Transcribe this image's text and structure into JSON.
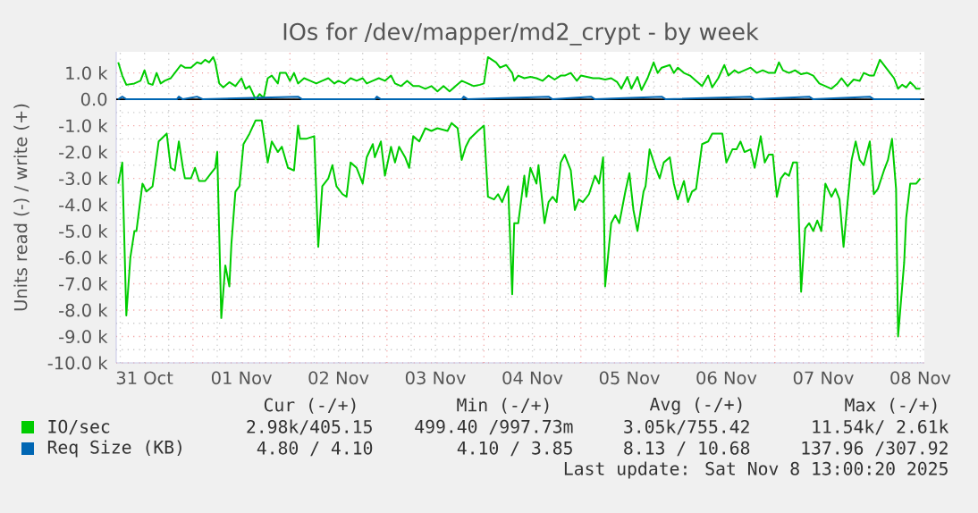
{
  "chart_data": {
    "type": "line",
    "title": "IOs for /dev/mapper/md2_crypt - by week",
    "ylabel": "Units read (-) / write (+)",
    "xlim": [
      "2025-10-31T05:00",
      "2025-11-08T13:00"
    ],
    "ylim": [
      -10000,
      1800
    ],
    "xticks": [
      {
        "value": "2025-10-31T12:00",
        "label": "31 Oct"
      },
      {
        "value": "2025-11-01T12:00",
        "label": "01 Nov"
      },
      {
        "value": "2025-11-02T12:00",
        "label": "02 Nov"
      },
      {
        "value": "2025-11-03T12:00",
        "label": "03 Nov"
      },
      {
        "value": "2025-11-04T12:00",
        "label": "04 Nov"
      },
      {
        "value": "2025-11-05T12:00",
        "label": "05 Nov"
      },
      {
        "value": "2025-11-06T12:00",
        "label": "06 Nov"
      },
      {
        "value": "2025-11-07T12:00",
        "label": "07 Nov"
      },
      {
        "value": "2025-11-08T12:00",
        "label": "08 Nov"
      },
      {
        "value": "2025-11-01T00:00",
        "label": null
      },
      {
        "value": "2025-11-02T00:00",
        "label": null
      },
      {
        "value": "2025-11-03T00:00",
        "label": null
      },
      {
        "value": "2025-11-04T00:00",
        "label": null
      },
      {
        "value": "2025-11-05T00:00",
        "label": null
      },
      {
        "value": "2025-11-06T00:00",
        "label": null
      },
      {
        "value": "2025-11-07T00:00",
        "label": null
      },
      {
        "value": "2025-11-08T00:00",
        "label": null
      }
    ],
    "yticks": [
      {
        "value": 1000,
        "label": "1.0 k"
      },
      {
        "value": 0,
        "label": "0.0"
      },
      {
        "value": -1000,
        "label": "-1.0 k"
      },
      {
        "value": -2000,
        "label": "-2.0 k"
      },
      {
        "value": -3000,
        "label": "-3.0 k"
      },
      {
        "value": -4000,
        "label": "-4.0 k"
      },
      {
        "value": -5000,
        "label": "-5.0 k"
      },
      {
        "value": -6000,
        "label": "-6.0 k"
      },
      {
        "value": -7000,
        "label": "-7.0 k"
      },
      {
        "value": -8000,
        "label": "-8.0 k"
      },
      {
        "value": -9000,
        "label": "-9.0 k"
      },
      {
        "value": -10000,
        "label": "-10.0 k"
      }
    ],
    "grid": true,
    "legend": "bottom",
    "ref_lines": [
      {
        "axis": "y",
        "value": 0,
        "color": "#000000"
      }
    ],
    "series": [
      {
        "name": "IO/sec",
        "color": "#00cc00",
        "x": [
          "2025-10-31T05:30",
          "2025-10-31T06:30",
          "2025-10-31T07:30",
          "2025-10-31T09:30",
          "2025-10-31T11:00",
          "2025-10-31T12:00",
          "2025-10-31T13:00",
          "2025-10-31T14:00",
          "2025-10-31T15:00",
          "2025-10-31T16:00",
          "2025-10-31T17:00",
          "2025-10-31T18:30",
          "2025-10-31T19:30",
          "2025-10-31T21:00",
          "2025-10-31T22:00",
          "2025-10-31T23:30",
          "2025-11-01T01:00",
          "2025-11-01T02:00",
          "2025-11-01T03:00",
          "2025-11-01T04:00",
          "2025-11-01T05:00",
          "2025-11-01T05:30",
          "2025-11-01T06:30",
          "2025-11-01T07:30",
          "2025-11-01T09:00",
          "2025-11-01T10:30",
          "2025-11-01T12:00",
          "2025-11-01T13:00",
          "2025-11-01T14:00",
          "2025-11-01T15:30",
          "2025-11-01T16:30",
          "2025-11-01T17:30",
          "2025-11-01T18:30",
          "2025-11-01T19:30",
          "2025-11-01T21:00",
          "2025-11-01T21:30",
          "2025-11-01T23:00",
          "2025-11-02T00:00",
          "2025-11-02T01:00",
          "2025-11-02T02:00",
          "2025-11-02T03:30",
          "2025-11-02T05:00",
          "2025-11-02T06:30",
          "2025-11-02T08:00",
          "2025-11-02T09:30",
          "2025-11-02T11:00",
          "2025-11-02T12:00",
          "2025-11-02T13:30",
          "2025-11-02T15:00",
          "2025-11-02T16:30",
          "2025-11-02T18:00",
          "2025-11-02T19:00",
          "2025-11-02T20:30",
          "2025-11-02T22:00",
          "2025-11-02T23:30",
          "2025-11-03T01:00",
          "2025-11-03T02:00",
          "2025-11-03T03:30",
          "2025-11-03T05:00",
          "2025-11-03T06:30",
          "2025-11-03T08:00",
          "2025-11-03T09:30",
          "2025-11-03T11:00",
          "2025-11-03T12:30",
          "2025-11-03T14:00",
          "2025-11-03T15:30",
          "2025-11-03T17:00",
          "2025-11-03T18:30",
          "2025-11-03T20:00",
          "2025-11-03T21:30",
          "2025-11-03T23:00",
          "2025-11-04T00:00",
          "2025-11-04T01:00",
          "2025-11-04T02:00",
          "2025-11-04T03:00",
          "2025-11-04T04:00",
          "2025-11-04T05:30",
          "2025-11-04T07:00",
          "2025-11-04T07:30",
          "2025-11-04T08:30",
          "2025-11-04T10:00",
          "2025-11-04T11:30",
          "2025-11-04T13:00",
          "2025-11-04T14:30",
          "2025-11-04T16:00",
          "2025-11-04T17:30",
          "2025-11-04T19:00",
          "2025-11-04T20:00",
          "2025-11-04T21:30",
          "2025-11-04T23:00",
          "2025-11-05T00:00",
          "2025-11-05T01:30",
          "2025-11-05T03:00",
          "2025-11-05T04:30",
          "2025-11-05T06:00",
          "2025-11-05T07:30",
          "2025-11-05T09:00",
          "2025-11-05T10:00",
          "2025-11-05T11:30",
          "2025-11-05T12:30",
          "2025-11-05T14:00",
          "2025-11-05T15:00",
          "2025-11-05T16:30",
          "2025-11-05T18:00",
          "2025-11-05T19:00",
          "2025-11-05T20:00",
          "2025-11-05T22:00",
          "2025-11-05T23:00",
          "2025-11-06T00:00",
          "2025-11-06T01:30",
          "2025-11-06T03:00",
          "2025-11-06T04:30",
          "2025-11-06T06:00",
          "2025-11-06T07:30",
          "2025-11-06T08:30",
          "2025-11-06T10:00",
          "2025-11-06T11:30",
          "2025-11-06T12:30",
          "2025-11-06T14:00",
          "2025-11-06T15:00",
          "2025-11-06T16:30",
          "2025-11-06T18:00",
          "2025-11-06T19:30",
          "2025-11-06T21:00",
          "2025-11-06T22:30",
          "2025-11-07T00:00",
          "2025-11-07T01:00",
          "2025-11-07T02:00",
          "2025-11-07T03:30",
          "2025-11-07T05:00",
          "2025-11-07T06:30",
          "2025-11-07T08:00",
          "2025-11-07T09:30",
          "2025-11-07T11:00",
          "2025-11-07T12:30",
          "2025-11-07T14:00",
          "2025-11-07T15:30",
          "2025-11-07T16:30",
          "2025-11-07T18:00",
          "2025-11-07T19:30",
          "2025-11-07T21:00",
          "2025-11-07T22:00",
          "2025-11-07T23:30",
          "2025-11-08T00:30",
          "2025-11-08T02:00",
          "2025-11-08T03:00",
          "2025-11-08T04:30",
          "2025-11-08T05:30",
          "2025-11-08T06:30",
          "2025-11-08T07:30",
          "2025-11-08T08:30",
          "2025-11-08T09:30",
          "2025-11-08T10:30",
          "2025-11-08T11:00",
          "2025-11-08T12:00"
        ],
        "values": [
          1400,
          900,
          550,
          600,
          700,
          1100,
          600,
          550,
          1000,
          600,
          700,
          800,
          1000,
          1300,
          1200,
          1200,
          1400,
          1350,
          1500,
          1400,
          1600,
          1400,
          600,
          450,
          650,
          500,
          800,
          400,
          500,
          0,
          200,
          50,
          800,
          900,
          600,
          1000,
          1000,
          700,
          1000,
          600,
          800,
          700,
          600,
          700,
          800,
          600,
          700,
          600,
          800,
          700,
          800,
          600,
          700,
          800,
          700,
          900,
          600,
          500,
          700,
          500,
          500,
          400,
          500,
          300,
          500,
          300,
          500,
          700,
          600,
          500,
          550,
          600,
          1600,
          1500,
          1400,
          1200,
          1300,
          1000,
          700,
          900,
          800,
          850,
          800,
          700,
          900,
          750,
          900,
          900,
          1000,
          700,
          900,
          850,
          800,
          800,
          750,
          800,
          650,
          400,
          850,
          400,
          850,
          350,
          800,
          1400,
          1000,
          1200,
          1300,
          1000,
          1200,
          1000,
          900,
          700,
          500,
          900,
          450,
          800,
          1300,
          900,
          1100,
          1000,
          1100,
          1200,
          1000,
          1100,
          1000,
          1000,
          1400,
          1100,
          1000,
          1100,
          950,
          1000,
          900,
          600,
          500,
          400,
          600,
          800,
          500,
          750,
          700,
          1000,
          900,
          900,
          1500,
          1300,
          1000,
          800,
          400,
          550,
          450,
          650,
          500,
          400,
          400
        ]
      },
      {
        "color": "#00cc00",
        "x": [
          "2025-10-31T05:30",
          "2025-10-31T06:30",
          "2025-10-31T07:30",
          "2025-10-31T08:30",
          "2025-10-31T09:30",
          "2025-10-31T10:00",
          "2025-10-31T11:30",
          "2025-10-31T12:30",
          "2025-10-31T14:00",
          "2025-10-31T15:30",
          "2025-10-31T17:30",
          "2025-10-31T18:30",
          "2025-10-31T19:30",
          "2025-10-31T20:30",
          "2025-10-31T21:30",
          "2025-10-31T22:00",
          "2025-10-31T23:30",
          "2025-11-01T00:30",
          "2025-11-01T01:30",
          "2025-11-01T03:00",
          "2025-11-01T04:30",
          "2025-11-01T05:30",
          "2025-11-01T06:00",
          "2025-11-01T07:00",
          "2025-11-01T08:00",
          "2025-11-01T09:00",
          "2025-11-01T09:30",
          "2025-11-01T10:30",
          "2025-11-01T11:30",
          "2025-11-01T12:30",
          "2025-11-01T14:00",
          "2025-11-01T15:30",
          "2025-11-01T17:00",
          "2025-11-01T18:30",
          "2025-11-01T19:30",
          "2025-11-01T21:00",
          "2025-11-01T22:00",
          "2025-11-01T23:30",
          "2025-11-02T01:00",
          "2025-11-02T02:00",
          "2025-11-02T02:30",
          "2025-11-02T04:00",
          "2025-11-02T06:00",
          "2025-11-02T07:00",
          "2025-11-02T08:00",
          "2025-11-02T09:30",
          "2025-11-02T10:30",
          "2025-11-02T11:30",
          "2025-11-02T13:00",
          "2025-11-02T14:00",
          "2025-11-02T15:00",
          "2025-11-02T16:30",
          "2025-11-02T18:00",
          "2025-11-02T19:00",
          "2025-11-02T20:30",
          "2025-11-02T21:00",
          "2025-11-02T22:30",
          "2025-11-02T23:30",
          "2025-11-03T01:00",
          "2025-11-03T02:00",
          "2025-11-03T03:00",
          "2025-11-03T04:30",
          "2025-11-03T05:30",
          "2025-11-03T06:30",
          "2025-11-03T08:00",
          "2025-11-03T09:30",
          "2025-11-03T11:00",
          "2025-11-03T12:30",
          "2025-11-03T15:00",
          "2025-11-03T16:00",
          "2025-11-03T17:30",
          "2025-11-03T18:30",
          "2025-11-03T19:30",
          "2025-11-03T20:30",
          "2025-11-03T22:30",
          "2025-11-04T00:00",
          "2025-11-04T01:00",
          "2025-11-04T02:30",
          "2025-11-04T03:30",
          "2025-11-04T04:30",
          "2025-11-04T06:00",
          "2025-11-04T07:00",
          "2025-11-04T07:30",
          "2025-11-04T08:30",
          "2025-11-04T10:00",
          "2025-11-04T10:30",
          "2025-11-04T11:30",
          "2025-11-04T13:00",
          "2025-11-04T13:30",
          "2025-11-04T15:00",
          "2025-11-04T16:00",
          "2025-11-04T17:00",
          "2025-11-04T18:00",
          "2025-11-04T19:00",
          "2025-11-04T20:00",
          "2025-11-04T21:30",
          "2025-11-04T22:30",
          "2025-11-04T23:30",
          "2025-11-05T00:30",
          "2025-11-05T02:00",
          "2025-11-05T03:30",
          "2025-11-05T04:30",
          "2025-11-05T05:30",
          "2025-11-05T06:00",
          "2025-11-05T07:30",
          "2025-11-05T08:30",
          "2025-11-05T09:30",
          "2025-11-05T11:00",
          "2025-11-05T12:00",
          "2025-11-05T13:00",
          "2025-11-05T14:00",
          "2025-11-05T15:30",
          "2025-11-05T16:00",
          "2025-11-05T17:00",
          "2025-11-05T18:30",
          "2025-11-05T19:30",
          "2025-11-05T20:30",
          "2025-11-05T22:00",
          "2025-11-05T23:00",
          "2025-11-06T00:00",
          "2025-11-06T01:30",
          "2025-11-06T02:30",
          "2025-11-06T03:30",
          "2025-11-06T04:30",
          "2025-11-06T06:00",
          "2025-11-06T07:30",
          "2025-11-06T08:30",
          "2025-11-06T10:00",
          "2025-11-06T11:00",
          "2025-11-06T12:00",
          "2025-11-06T13:30",
          "2025-11-06T14:30",
          "2025-11-06T15:30",
          "2025-11-06T16:30",
          "2025-11-06T18:00",
          "2025-11-06T19:00",
          "2025-11-06T20:30",
          "2025-11-06T21:30",
          "2025-11-06T22:30",
          "2025-11-06T23:30",
          "2025-11-07T00:30",
          "2025-11-07T01:30",
          "2025-11-07T02:30",
          "2025-11-07T03:30",
          "2025-11-07T04:30",
          "2025-11-07T05:30",
          "2025-11-07T06:30",
          "2025-11-07T07:30",
          "2025-11-07T08:30",
          "2025-11-07T09:30",
          "2025-11-07T10:30",
          "2025-11-07T11:30",
          "2025-11-07T12:30",
          "2025-11-07T14:00",
          "2025-11-07T15:00",
          "2025-11-07T16:00",
          "2025-11-07T17:00",
          "2025-11-07T18:00",
          "2025-11-07T19:00",
          "2025-11-07T20:00",
          "2025-11-07T21:00",
          "2025-11-07T22:00",
          "2025-11-07T23:30",
          "2025-11-08T00:30",
          "2025-11-08T01:30",
          "2025-11-08T03:00",
          "2025-11-08T04:00",
          "2025-11-08T05:00",
          "2025-11-08T06:00",
          "2025-11-08T06:30",
          "2025-11-08T08:00",
          "2025-11-08T08:30",
          "2025-11-08T09:30",
          "2025-11-08T11:00",
          "2025-11-08T12:00"
        ],
        "values": [
          -3200,
          -2400,
          -8200,
          -6000,
          -5000,
          -5000,
          -3200,
          -3500,
          -3300,
          -1600,
          -1300,
          -2600,
          -2700,
          -1600,
          -2600,
          -3000,
          -3000,
          -2600,
          -3100,
          -3100,
          -2800,
          -2600,
          -2000,
          -8300,
          -6300,
          -7100,
          -5500,
          -3500,
          -3300,
          -1700,
          -1300,
          -800,
          -800,
          -2400,
          -1600,
          -2000,
          -1800,
          -2600,
          -2700,
          -1000,
          -1500,
          -1500,
          -1400,
          -5600,
          -3300,
          -3000,
          -2500,
          -3300,
          -3600,
          -3700,
          -2400,
          -2600,
          -3200,
          -2200,
          -1700,
          -2200,
          -1600,
          -2900,
          -1800,
          -2400,
          -1800,
          -2200,
          -2600,
          -1400,
          -1600,
          -1100,
          -1200,
          -1100,
          -1200,
          -900,
          -1100,
          -2300,
          -1800,
          -1500,
          -1200,
          -1000,
          -3700,
          -3800,
          -3600,
          -3900,
          -3300,
          -7400,
          -4700,
          -4700,
          -2900,
          -3700,
          -2600,
          -3200,
          -2500,
          -4700,
          -3900,
          -3700,
          -3900,
          -2400,
          -2100,
          -2700,
          -4200,
          -3800,
          -3900,
          -3600,
          -2900,
          -3200,
          -2200,
          -7100,
          -4700,
          -4400,
          -4700,
          -3500,
          -2800,
          -4200,
          -5000,
          -3500,
          -3300,
          -1900,
          -2600,
          -3000,
          -2400,
          -2200,
          -3200,
          -3800,
          -3100,
          -3900,
          -3500,
          -3400,
          -1700,
          -1600,
          -1300,
          -1300,
          -1300,
          -2400,
          -1900,
          -1900,
          -1600,
          -2000,
          -1900,
          -2600,
          -1400,
          -2400,
          -2100,
          -2100,
          -3700,
          -3000,
          -2800,
          -2900,
          -2400,
          -2400,
          -7300,
          -4900,
          -4700,
          -5000,
          -4600,
          -5000,
          -3200,
          -3700,
          -3400,
          -3800,
          -5600,
          -3900,
          -2300,
          -1600,
          -2300,
          -2500,
          -1600,
          -3600,
          -3400,
          -2700,
          -2300,
          -1500,
          -3400,
          -9000,
          -6200,
          -4500,
          -3200,
          -3200,
          -3000
        ]
      },
      {
        "name": "Req Size (KB)",
        "color": "#0066b3",
        "x": [
          "2025-10-31T05:30",
          "2025-10-31T06:30",
          "2025-10-31T07:30",
          "2025-10-31T20:00",
          "2025-10-31T20:30",
          "2025-10-31T21:30",
          "2025-11-01T01:00",
          "2025-11-01T02:30",
          "2025-11-02T02:00",
          "2025-11-02T03:00",
          "2025-11-02T21:00",
          "2025-11-02T21:30",
          "2025-11-02T22:30",
          "2025-11-03T18:30",
          "2025-11-03T19:00",
          "2025-11-03T20:00",
          "2025-11-04T16:00",
          "2025-11-04T17:00",
          "2025-11-05T02:30",
          "2025-11-05T03:30",
          "2025-11-05T20:00",
          "2025-11-05T21:00",
          "2025-11-06T18:00",
          "2025-11-06T19:00",
          "2025-11-07T08:30",
          "2025-11-07T09:30",
          "2025-11-07T23:30",
          "2025-11-08T00:30",
          "2025-11-08T12:00"
        ],
        "values": [
          0,
          100,
          0,
          0,
          100,
          0,
          100,
          0,
          100,
          0,
          0,
          100,
          0,
          0,
          100,
          0,
          100,
          0,
          100,
          0,
          100,
          0,
          100,
          0,
          100,
          0,
          100,
          0,
          0
        ]
      }
    ],
    "annotations": [
      "Cur (-/+)",
      "Min (-/+)",
      "Avg (-/+)",
      "Max (-/+)",
      "2.98k/405.15",
      "499.40 /997.73m",
      "3.05k/755.42",
      "11.54k/  2.61k",
      "4.80 /  4.10",
      "4.10 /  3.85",
      "8.13 / 10.68",
      "137.96 /307.92",
      "Last update: Sat Nov  8 13:00:20 2025"
    ]
  }
}
